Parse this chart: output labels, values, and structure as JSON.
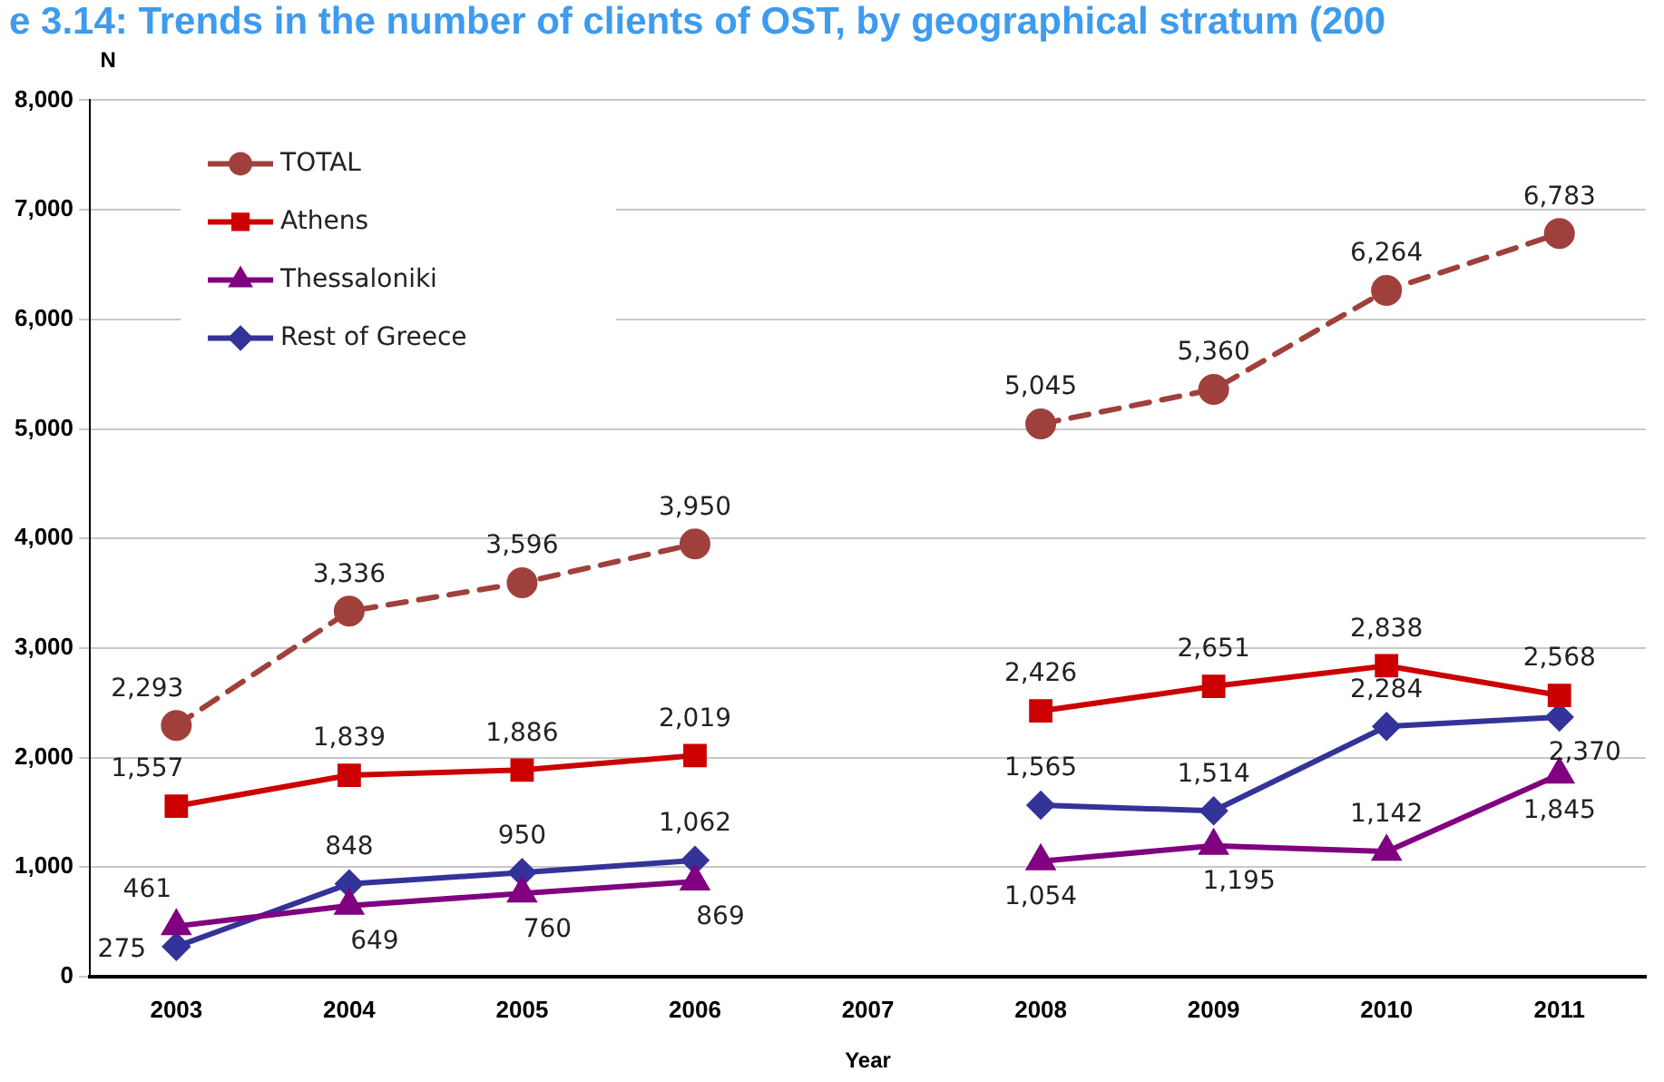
{
  "chart_data": {
    "type": "line",
    "title": "e 3.14: Trends in the number of clients of OST, by geographical stratum (200",
    "ylabel": "N",
    "xlabel": "Year",
    "categories": [
      "2003",
      "2004",
      "2005",
      "2006",
      "2007",
      "2008",
      "2009",
      "2010",
      "2011"
    ],
    "series": [
      {
        "name": "TOTAL",
        "color": "#a0403c",
        "marker": "circle",
        "line_style": "dashed",
        "values": [
          2293,
          3336,
          3596,
          3950,
          null,
          5045,
          5360,
          6264,
          6783
        ],
        "value_labels": [
          "2,293",
          "3,336",
          "3,596",
          "3,950",
          null,
          "5,045",
          "5,360",
          "6,264",
          "6,783"
        ]
      },
      {
        "name": "Athens",
        "color": "#cc0000",
        "marker": "square",
        "values": [
          1557,
          1839,
          1886,
          2019,
          null,
          2426,
          2651,
          2838,
          2568
        ],
        "value_labels": [
          "1,557",
          "1,839",
          "1,886",
          "2,019",
          null,
          "2,426",
          "2,651",
          "2,838",
          "2,568"
        ]
      },
      {
        "name": "Thessaloniki",
        "color": "#800080",
        "marker": "triangle",
        "values": [
          461,
          649,
          760,
          869,
          null,
          1054,
          1195,
          1142,
          1845
        ],
        "value_labels": [
          "461",
          "649",
          "760",
          "869",
          null,
          "1,054",
          "1,195",
          "1,142",
          "1,845"
        ]
      },
      {
        "name": "Rest of Greece",
        "color": "#333399",
        "marker": "diamond",
        "values": [
          275,
          848,
          950,
          1062,
          null,
          1565,
          1514,
          2284,
          2370
        ],
        "value_labels": [
          "275",
          "848",
          "950",
          "1,062",
          null,
          "1,565",
          "1,514",
          "2,284",
          "2,370"
        ]
      }
    ],
    "ylim": [
      0,
      8000
    ],
    "yticks": [
      {
        "value": 0,
        "label": "0"
      },
      {
        "value": 1000,
        "label": "1,000"
      },
      {
        "value": 2000,
        "label": "2,000"
      },
      {
        "value": 3000,
        "label": "3,000"
      },
      {
        "value": 4000,
        "label": "4,000"
      },
      {
        "value": 5000,
        "label": "5,000"
      },
      {
        "value": 6000,
        "label": "6,000"
      },
      {
        "value": 7000,
        "label": "7,000"
      },
      {
        "value": 8000,
        "label": "8,000"
      }
    ],
    "grid": "y",
    "legend": "top left",
    "line_style": "solid"
  }
}
